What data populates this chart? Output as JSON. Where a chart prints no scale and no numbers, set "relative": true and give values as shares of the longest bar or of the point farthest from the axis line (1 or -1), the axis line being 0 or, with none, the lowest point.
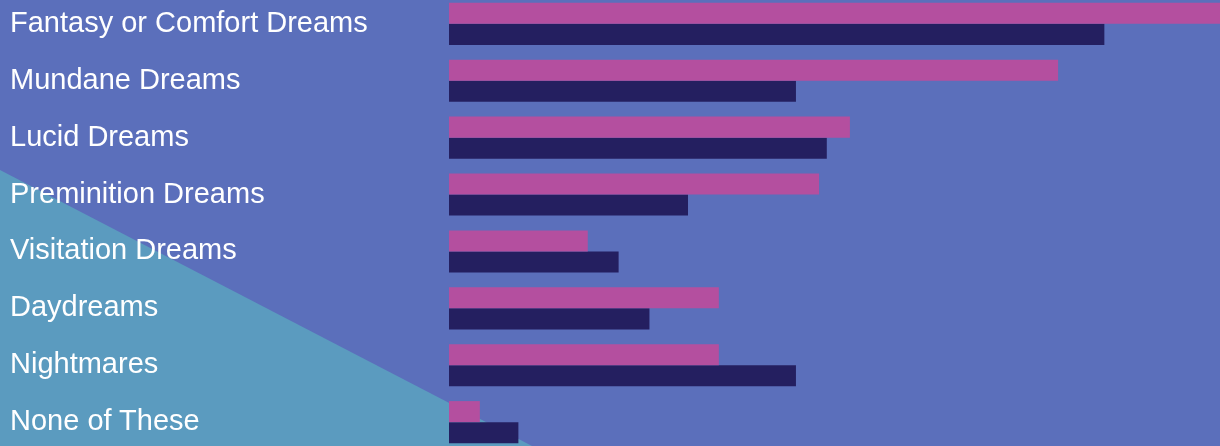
{
  "chart_data": {
    "type": "bar",
    "orientation": "horizontal",
    "relative": true,
    "legend": false,
    "categories": [
      "Fantasy or Comfort Dreams",
      "Mundane Dreams",
      "Lucid Dreams",
      "Preminition Dreams",
      "Visitation Dreams",
      "Daydreams",
      "Nightmares",
      "None of These"
    ],
    "series": [
      {
        "color": "#b44f9f",
        "values": [
          1.0,
          0.79,
          0.52,
          0.48,
          0.18,
          0.35,
          0.35,
          0.04
        ]
      },
      {
        "color": "#241f60",
        "values": [
          0.85,
          0.45,
          0.49,
          0.31,
          0.22,
          0.26,
          0.45,
          0.09
        ]
      }
    ]
  }
}
